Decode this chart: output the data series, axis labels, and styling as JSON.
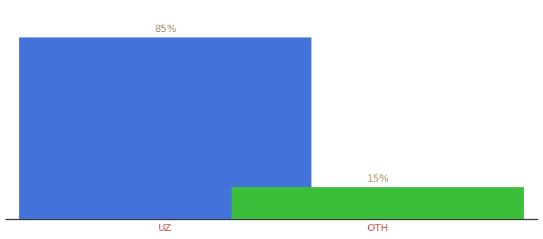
{
  "categories": [
    "UZ",
    "OTH"
  ],
  "values": [
    85,
    15
  ],
  "bar_colors": [
    "#4472db",
    "#3bbf3b"
  ],
  "label_color": "#9b8860",
  "label_fontsize": 9,
  "xlabel_fontsize": 9,
  "xlabel_color": "#cc4444",
  "background_color": "#ffffff",
  "ylim": [
    0,
    100
  ],
  "bar_width": 0.55,
  "x_positions": [
    0.3,
    0.7
  ],
  "xlim": [
    0,
    1.0
  ]
}
